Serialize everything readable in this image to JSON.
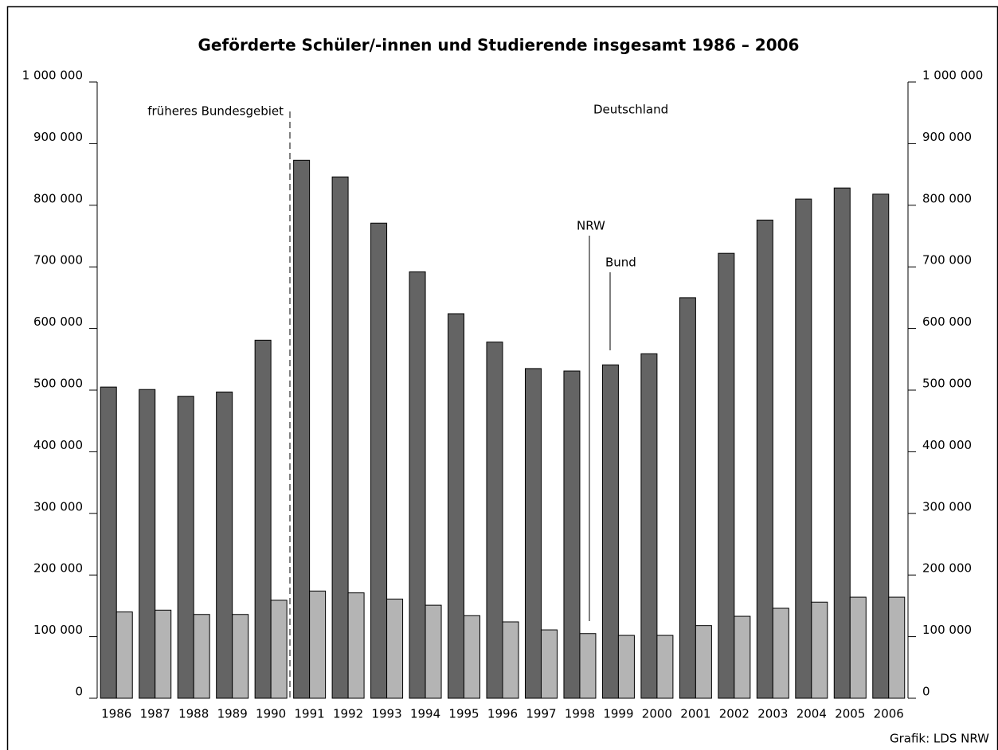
{
  "chart_data": {
    "type": "bar",
    "title": "Geförderte Schüler/-innen und Studierende insgesamt 1986 – 2006",
    "categories": [
      "1986",
      "1987",
      "1988",
      "1989",
      "1990",
      "1991",
      "1992",
      "1993",
      "1994",
      "1995",
      "1996",
      "1997",
      "1998",
      "1999",
      "2000",
      "2001",
      "2002",
      "2003",
      "2004",
      "2005",
      "2006"
    ],
    "series": [
      {
        "name": "Bund",
        "color": "#646464",
        "values": [
          505000,
          501000,
          490000,
          497000,
          581000,
          873000,
          846000,
          771000,
          692000,
          624000,
          578000,
          535000,
          531000,
          541000,
          559000,
          650000,
          722000,
          776000,
          810000,
          828000,
          818000
        ]
      },
      {
        "name": "NRW",
        "color": "#b4b4b4",
        "values": [
          140000,
          143000,
          136000,
          136000,
          159000,
          174000,
          171000,
          161000,
          151000,
          134000,
          124000,
          111000,
          105000,
          102000,
          102000,
          118000,
          133000,
          146000,
          156000,
          164000,
          164000
        ]
      }
    ],
    "ylim": [
      0,
      1000000
    ],
    "yticks": [
      0,
      {
        "value": 100000,
        "label": "100 000"
      },
      {
        "value": 200000,
        "label": "200 000"
      },
      {
        "value": 300000,
        "label": "300 000"
      },
      {
        "value": 400000,
        "label": "400 000"
      },
      {
        "value": 500000,
        "label": "500 000"
      },
      {
        "value": 600000,
        "label": "600 000"
      },
      {
        "value": 700000,
        "label": "700 000"
      },
      {
        "value": 800000,
        "label": "800 000"
      },
      {
        "value": 900000,
        "label": "900 000"
      },
      {
        "value": 1000000,
        "label": "1 000 000"
      }
    ],
    "y2lim": [
      0,
      1000000
    ],
    "y2ticks": [
      0,
      {
        "value": 100000,
        "label": "100 000"
      },
      {
        "value": 200000,
        "label": "200 000"
      },
      {
        "value": 300000,
        "label": "300 000"
      },
      {
        "value": 400000,
        "label": "400 000"
      },
      {
        "value": 500000,
        "label": "500 000"
      },
      {
        "value": 600000,
        "label": "600 000"
      },
      {
        "value": 700000,
        "label": "700 000"
      },
      {
        "value": 800000,
        "label": "800 000"
      },
      {
        "value": 900000,
        "label": "900 000"
      },
      {
        "value": 1000000,
        "label": "1 000 000"
      }
    ],
    "annotations": [
      "früheres Bundesgebiet",
      "Deutschland"
    ],
    "source": "Grafik: LDS NRW"
  }
}
